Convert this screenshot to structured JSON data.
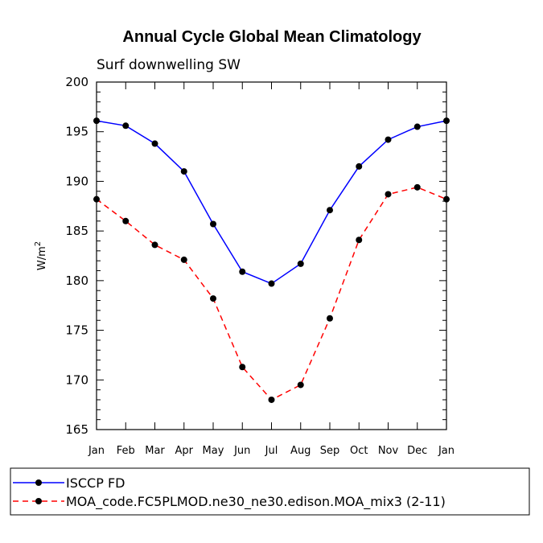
{
  "chart_data": {
    "type": "line",
    "title": "Annual Cycle Global Mean Climatology",
    "subtitle": "Surf downwelling SW",
    "xlabel": "",
    "ylabel": "W/m",
    "ylabel_superscript": "2",
    "categories": [
      "Jan",
      "Feb",
      "Mar",
      "Apr",
      "May",
      "Jun",
      "Jul",
      "Aug",
      "Sep",
      "Oct",
      "Nov",
      "Dec",
      "Jan"
    ],
    "ylim": [
      165,
      200
    ],
    "yticks": [
      165,
      170,
      175,
      180,
      185,
      190,
      195,
      200
    ],
    "legend_position": "bottom",
    "series": [
      {
        "name": "ISCCP FD",
        "color": "#0000ff",
        "style": "solid",
        "values": [
          196.1,
          195.6,
          193.8,
          191.0,
          185.7,
          180.9,
          179.7,
          181.7,
          187.1,
          191.5,
          194.2,
          195.5,
          196.1
        ]
      },
      {
        "name": "MOA_code.FC5PLMOD.ne30_ne30.edison.MOA_mix3 (2-11)",
        "color": "#ff0000",
        "style": "dashed",
        "values": [
          188.2,
          186.0,
          183.6,
          182.1,
          178.2,
          171.3,
          168.0,
          169.5,
          176.2,
          184.1,
          188.7,
          189.4,
          188.2
        ]
      }
    ]
  }
}
